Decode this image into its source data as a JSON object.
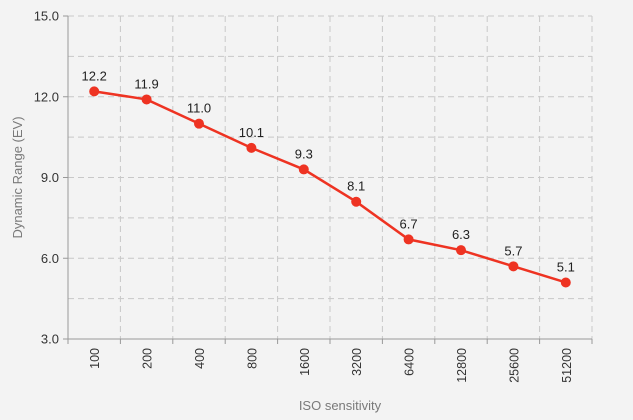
{
  "chart_data": {
    "type": "line",
    "title": "",
    "xlabel": "ISO sensitivity",
    "ylabel": "Dynamic Range (EV)",
    "categories": [
      "100",
      "200",
      "400",
      "800",
      "1600",
      "3200",
      "6400",
      "12800",
      "25600",
      "51200"
    ],
    "series": [
      {
        "values": [
          12.2,
          11.9,
          11.0,
          10.1,
          9.3,
          8.1,
          6.7,
          6.3,
          5.7,
          5.1
        ],
        "labels": [
          "12.2",
          "11.9",
          "11.0",
          "10.1",
          "9.3",
          "8.1",
          "6.7",
          "6.3",
          "5.7",
          "5.1"
        ]
      }
    ],
    "ylim": [
      3.0,
      15.0
    ],
    "yticks": [
      "3.0",
      "6.0",
      "9.0",
      "12.0",
      "15.0"
    ],
    "minor_ytick_step": 1.5,
    "grid": true,
    "legend": "none",
    "colors": {
      "line": "#ee3322",
      "marker": "#ee3322",
      "grid": "#c8c8c8",
      "axis": "#999999",
      "background": "#f3f3f3"
    }
  }
}
